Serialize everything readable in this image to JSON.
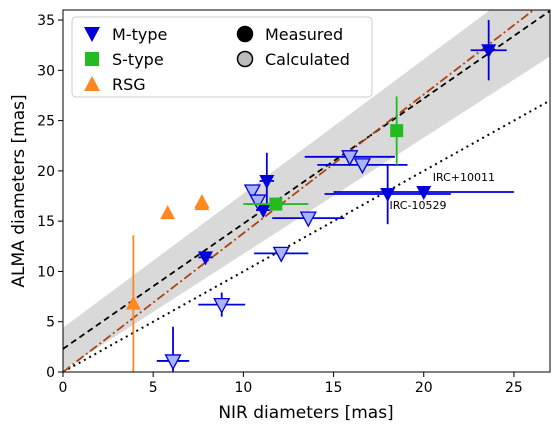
{
  "chart_data": {
    "type": "scatter",
    "xlabel": "NIR diameters [mas]",
    "ylabel": "ALMA diameters [mas]",
    "xlim": [
      0,
      27
    ],
    "ylim": [
      0,
      36
    ],
    "xticks": [
      0,
      5,
      10,
      15,
      20,
      25
    ],
    "yticks": [
      0,
      5,
      10,
      15,
      20,
      25,
      30,
      35
    ],
    "legend": {
      "placement": "top-left",
      "entries": [
        {
          "label": "M-type",
          "marker": "triangle-down",
          "color": "#0000dd"
        },
        {
          "label": "S-type",
          "marker": "square",
          "color": "#22bb22"
        },
        {
          "label": "RSG",
          "marker": "triangle-up",
          "color": "#ff8822"
        },
        {
          "label": "Measured",
          "marker": "circle",
          "color": "#000000"
        },
        {
          "label": "Calculated",
          "marker": "circle",
          "color": "#bbbbbb"
        }
      ]
    },
    "lines": [
      {
        "style": "dotted",
        "color": "#000000",
        "slope": 1.0,
        "intercept": 0
      },
      {
        "style": "dashed",
        "color": "#000000",
        "slope": 1.245,
        "intercept": 2.3
      },
      {
        "style": "dashdot",
        "color": "#aa4411",
        "slope": 1.38,
        "intercept": 0
      }
    ],
    "band": {
      "color": "#d9d9d9",
      "lower": {
        "slope": 1.155,
        "intercept": 0.2
      },
      "upper": {
        "slope": 1.335,
        "intercept": 4.4
      }
    },
    "series": [
      {
        "type": "M-type",
        "kind": "measured",
        "points": [
          {
            "x": 7.9,
            "y": 11.4,
            "xerr": 0.4,
            "yerr": 0.5
          },
          {
            "x": 11.1,
            "y": 16.1,
            "xerr": 0.4,
            "yerr": 0.4
          },
          {
            "x": 11.3,
            "y": 19.0,
            "xerr": 0.4,
            "yerr": 2.8
          },
          {
            "x": 18.0,
            "y": 17.7,
            "xerr": 3.5,
            "yerr": 3.0
          },
          {
            "x": 20.0,
            "y": 17.9,
            "xerr": 5.0,
            "yerr": 0.3
          },
          {
            "x": 23.6,
            "y": 32.0,
            "xerr": 1.0,
            "yerr": 3.0
          }
        ]
      },
      {
        "type": "M-type",
        "kind": "calculated",
        "points": [
          {
            "x": 6.1,
            "y": 1.1,
            "xerr": 0.9,
            "yerr": 3.4
          },
          {
            "x": 8.8,
            "y": 6.7,
            "xerr": 1.3,
            "yerr": 1.2
          },
          {
            "x": 10.5,
            "y": 18.0,
            "xerr": 0,
            "yerr": 0
          },
          {
            "x": 10.8,
            "y": 17.0,
            "xerr": 0,
            "yerr": 0
          },
          {
            "x": 12.1,
            "y": 11.8,
            "xerr": 1.5,
            "yerr": 0
          },
          {
            "x": 13.6,
            "y": 15.3,
            "xerr": 2.0,
            "yerr": 0
          },
          {
            "x": 15.9,
            "y": 21.4,
            "xerr": 2.5,
            "yerr": 0
          },
          {
            "x": 16.6,
            "y": 20.6,
            "xerr": 2.5,
            "yerr": 0
          }
        ]
      },
      {
        "type": "S-type",
        "kind": "measured",
        "points": [
          {
            "x": 11.8,
            "y": 16.7,
            "xerr": 1.8,
            "yerr": 0.2
          },
          {
            "x": 18.5,
            "y": 24.0,
            "xerr": 0.2,
            "yerr": 3.4
          }
        ]
      },
      {
        "type": "RSG",
        "kind": "measured",
        "points": [
          {
            "x": 3.9,
            "y": 6.8,
            "xerr": 0,
            "yerr": 6.8
          },
          {
            "x": 5.8,
            "y": 15.8,
            "xerr": 0,
            "yerr": 0
          },
          {
            "x": 7.7,
            "y": 16.9,
            "xerr": 0,
            "yerr": 0
          },
          {
            "x": 7.7,
            "y": 16.7,
            "xerr": 0,
            "yerr": 0
          }
        ]
      }
    ],
    "annotations": [
      {
        "text": "IRC+10011",
        "x": 20.5,
        "y": 19.0
      },
      {
        "text": "IRC-10529",
        "x": 18.1,
        "y": 16.2
      }
    ]
  }
}
